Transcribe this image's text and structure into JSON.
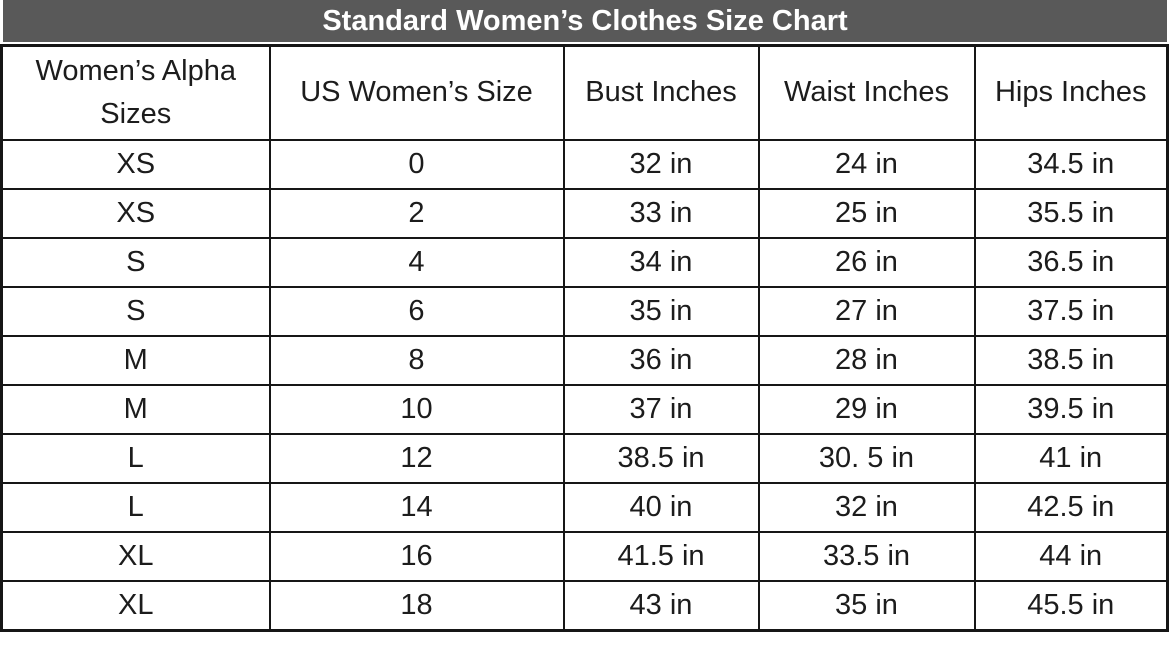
{
  "colors": {
    "title_bar_bg": "#595959",
    "title_text": "#ffffff",
    "border": "#161616",
    "cell_bg": "#ffffff",
    "cell_text": "#1c1c1c"
  },
  "chart_data": {
    "type": "table",
    "title": "Standard Women’s Clothes Size Chart",
    "columns": [
      "Women’s Alpha Sizes",
      "US Women’s Size",
      "Bust Inches",
      "Waist Inches",
      "Hips Inches"
    ],
    "rows": [
      [
        "XS",
        "0",
        "32 in",
        "24 in",
        "34.5 in"
      ],
      [
        "XS",
        "2",
        "33 in",
        "25 in",
        "35.5 in"
      ],
      [
        "S",
        "4",
        "34 in",
        "26 in",
        "36.5 in"
      ],
      [
        "S",
        "6",
        "35 in",
        "27 in",
        "37.5 in"
      ],
      [
        "M",
        "8",
        "36 in",
        "28 in",
        "38.5 in"
      ],
      [
        "M",
        "10",
        "37 in",
        "29 in",
        "39.5 in"
      ],
      [
        "L",
        "12",
        "38.5 in",
        "30. 5 in",
        "41 in"
      ],
      [
        "L",
        "14",
        "40 in",
        "32 in",
        "42.5 in"
      ],
      [
        "XL",
        "16",
        "41.5 in",
        "33.5 in",
        "44 in"
      ],
      [
        "XL",
        "18",
        "43 in",
        "35 in",
        "45.5 in"
      ]
    ]
  }
}
